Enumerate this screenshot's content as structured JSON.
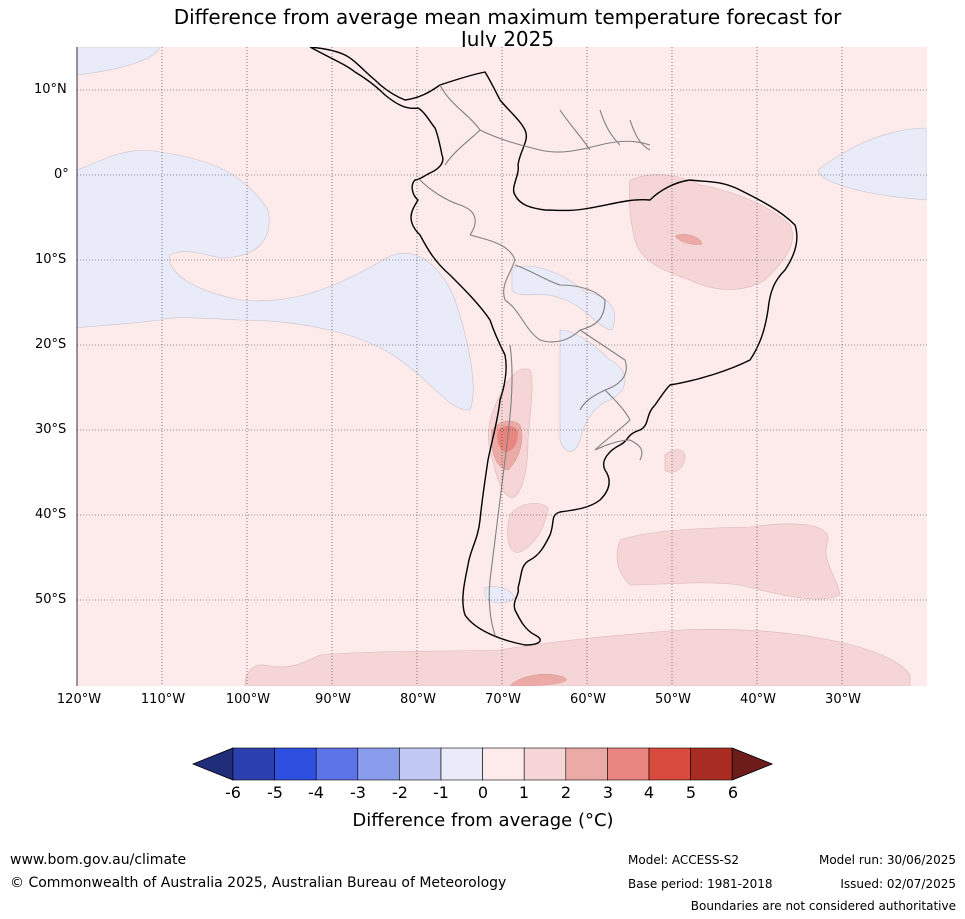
{
  "title": {
    "line1": "Difference from average mean maximum temperature forecast for",
    "line2": "July 2025"
  },
  "map": {
    "lat_labels": [
      "10°N",
      "0°",
      "10°S",
      "20°S",
      "30°S",
      "40°S",
      "50°S"
    ],
    "lon_labels": [
      "120°W",
      "110°W",
      "100°W",
      "90°W",
      "80°W",
      "70°W",
      "60°W",
      "50°W",
      "40°W",
      "30°W"
    ],
    "colors": {
      "bin_0_1": "#fcebea",
      "bin_1_2": "#f5d5d5",
      "bin_2_3": "#ecaaa6",
      "bin_3_4": "#e7857e",
      "bin_neg1_0": "#e9ebf9",
      "coast": "#000000",
      "border": "#808080"
    }
  },
  "colorbar": {
    "ticks": [
      "-6",
      "-5",
      "-4",
      "-3",
      "-2",
      "-1",
      "0",
      "1",
      "2",
      "3",
      "4",
      "5",
      "6"
    ],
    "colors": [
      "#1f2d7a",
      "#2a40b0",
      "#2f4fe0",
      "#5c74e6",
      "#8a9ded",
      "#c0c8f3",
      "#e9ebf9",
      "#fcebea",
      "#f5d5d5",
      "#ecaaa6",
      "#e7857e",
      "#d94a3f",
      "#a82c22",
      "#6e1c1a"
    ],
    "label": "Difference from average (°C)"
  },
  "footer": {
    "url": "www.bom.gov.au/climate",
    "copyright": "© Commonwealth of Australia 2025, Australian Bureau of Meteorology",
    "model": "Model: ACCESS-S2",
    "base_period": "Base period: 1981-2018",
    "model_run": "Model run: 30/06/2025",
    "issued": "Issued: 02/07/2025",
    "disclaimer": "Boundaries are not considered authoritative"
  }
}
